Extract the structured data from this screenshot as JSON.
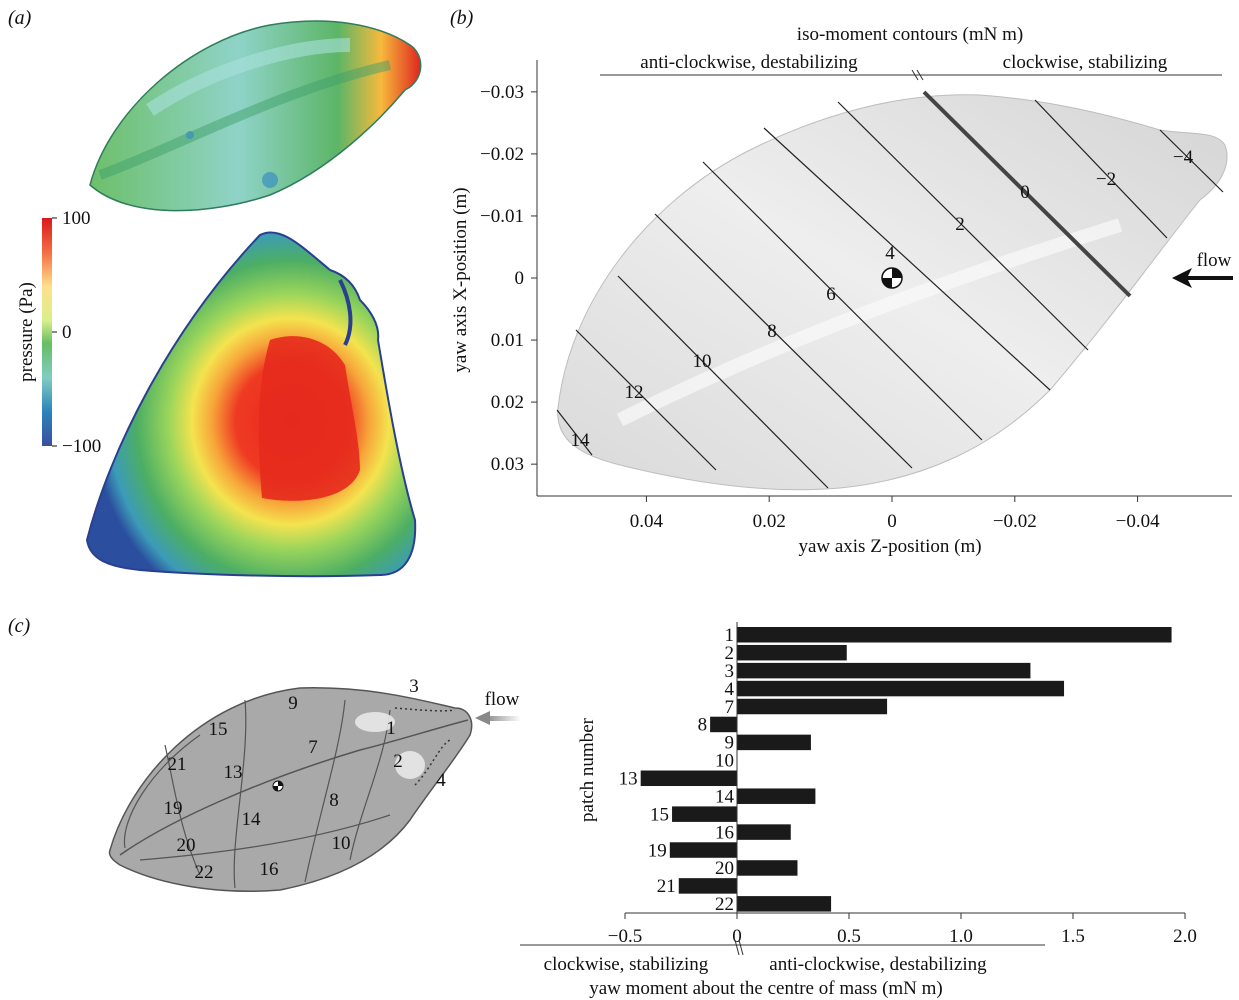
{
  "panel_a": {
    "label": "(a)",
    "colorbar": {
      "label": "pressure (Pa)",
      "max_label": "100",
      "mid_label": "0",
      "min_label": "−100",
      "colors": [
        "#d7191c",
        "#f46d43",
        "#fee08b",
        "#d9ef8b",
        "#66bd63",
        "#80cdc1",
        "#2b83ba",
        "#3a4fa0"
      ]
    }
  },
  "panel_b": {
    "label": "(b)",
    "header": "iso-moment contours (mN m)",
    "left_note": "anti-clockwise, destabilizing",
    "right_note": "clockwise, stabilizing",
    "flow_label": "flow",
    "contour_labels": [
      "14",
      "12",
      "10",
      "8",
      "6",
      "4",
      "2",
      "0",
      "−2",
      "−4"
    ]
  },
  "panel_c": {
    "label": "(c)",
    "flow_label": "flow",
    "patch_labels": [
      "1",
      "2",
      "3",
      "4",
      "7",
      "8",
      "9",
      "10",
      "13",
      "14",
      "15",
      "16",
      "19",
      "20",
      "21",
      "22"
    ],
    "ylabel": "patch number",
    "xlabel": "yaw moment about the centre of mass (mN m)",
    "left_note": "clockwise, stabilizing",
    "right_note": "anti-clockwise, destabilizing"
  },
  "chart_data": [
    {
      "type": "line",
      "title": "iso-moment contours (mN m)",
      "xlabel": "yaw axis Z-position (m)",
      "ylabel": "yaw axis X-position (m)",
      "xlim": [
        0.056,
        -0.056
      ],
      "ylim": [
        -0.035,
        0.035
      ],
      "xticks": [
        0.04,
        0.02,
        0,
        -0.02,
        -0.04
      ],
      "xtick_labels": [
        "0.04",
        "0.02",
        "0",
        "−0.02",
        "−0.04"
      ],
      "yticks": [
        -0.03,
        -0.02,
        -0.01,
        0,
        0.01,
        0.02,
        0.03
      ],
      "ytick_labels": [
        "−0.03",
        "−0.02",
        "−0.01",
        "0",
        "0.01",
        "0.02",
        "0.03"
      ],
      "centre_of_mass": [
        0,
        0
      ],
      "contour_levels": [
        14,
        12,
        10,
        8,
        6,
        4,
        2,
        0,
        -2,
        -4
      ]
    },
    {
      "type": "bar",
      "orientation": "horizontal",
      "xlabel": "yaw moment about the centre of mass (mN m)",
      "ylabel": "patch number",
      "xlim": [
        -0.5,
        2.0
      ],
      "xticks": [
        -0.5,
        0,
        0.5,
        1.0,
        1.5,
        2.0
      ],
      "xtick_labels": [
        "−0.5",
        "0",
        "0.5",
        "1.0",
        "1.5",
        "2.0"
      ],
      "categories": [
        "1",
        "2",
        "3",
        "4",
        "7",
        "8",
        "9",
        "10",
        "13",
        "14",
        "15",
        "16",
        "19",
        "20",
        "21",
        "22"
      ],
      "values": [
        1.94,
        0.49,
        1.31,
        1.46,
        0.67,
        -0.12,
        0.33,
        0.0,
        -0.43,
        0.35,
        -0.29,
        0.24,
        -0.3,
        0.27,
        -0.26,
        0.42
      ]
    }
  ]
}
